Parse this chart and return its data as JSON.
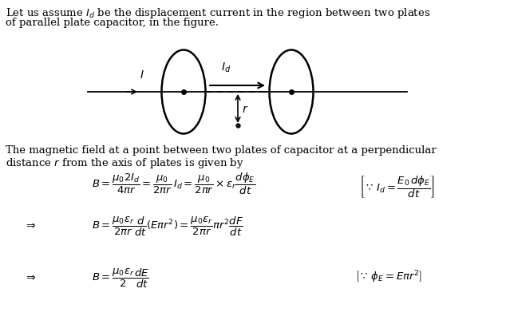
{
  "bg_color": "#ffffff",
  "fig_width": 6.34,
  "fig_height": 4.21,
  "dpi": 100,
  "line1": "Let us assume $I_d$ be the displacement current in the region between two plates",
  "line2": "of parallel plate capacitor, in the figure.",
  "line3": "The magnetic field at a point between two plates of capacitor at a perpendicular",
  "line4": "distance $r$ from the axis of plates is given by",
  "eq1": "$B = \\dfrac{\\mu_0 2I_d}{4\\pi r} = \\dfrac{\\mu_0}{2\\pi r}\\, I_d = \\dfrac{\\mu_0}{2\\pi r} \\times \\varepsilon_r \\dfrac{d\\phi_E}{dt}$",
  "box1": "$\\because\\, I_d = \\dfrac{E_0 d\\phi_E}{dt}$",
  "eq2": "$B = \\dfrac{\\mu_0\\varepsilon_r}{2\\pi r}\\dfrac{d}{dt}(E\\pi r^2) = \\dfrac{\\mu_0\\varepsilon_r}{2\\pi r}\\pi r^2 \\dfrac{dF}{dt}$",
  "eq3": "$B = \\dfrac{\\mu_0\\varepsilon_r}{2}\\dfrac{dE}{dt}$",
  "box2": "$\\because\\, \\phi_E = E\\pi r^2$"
}
